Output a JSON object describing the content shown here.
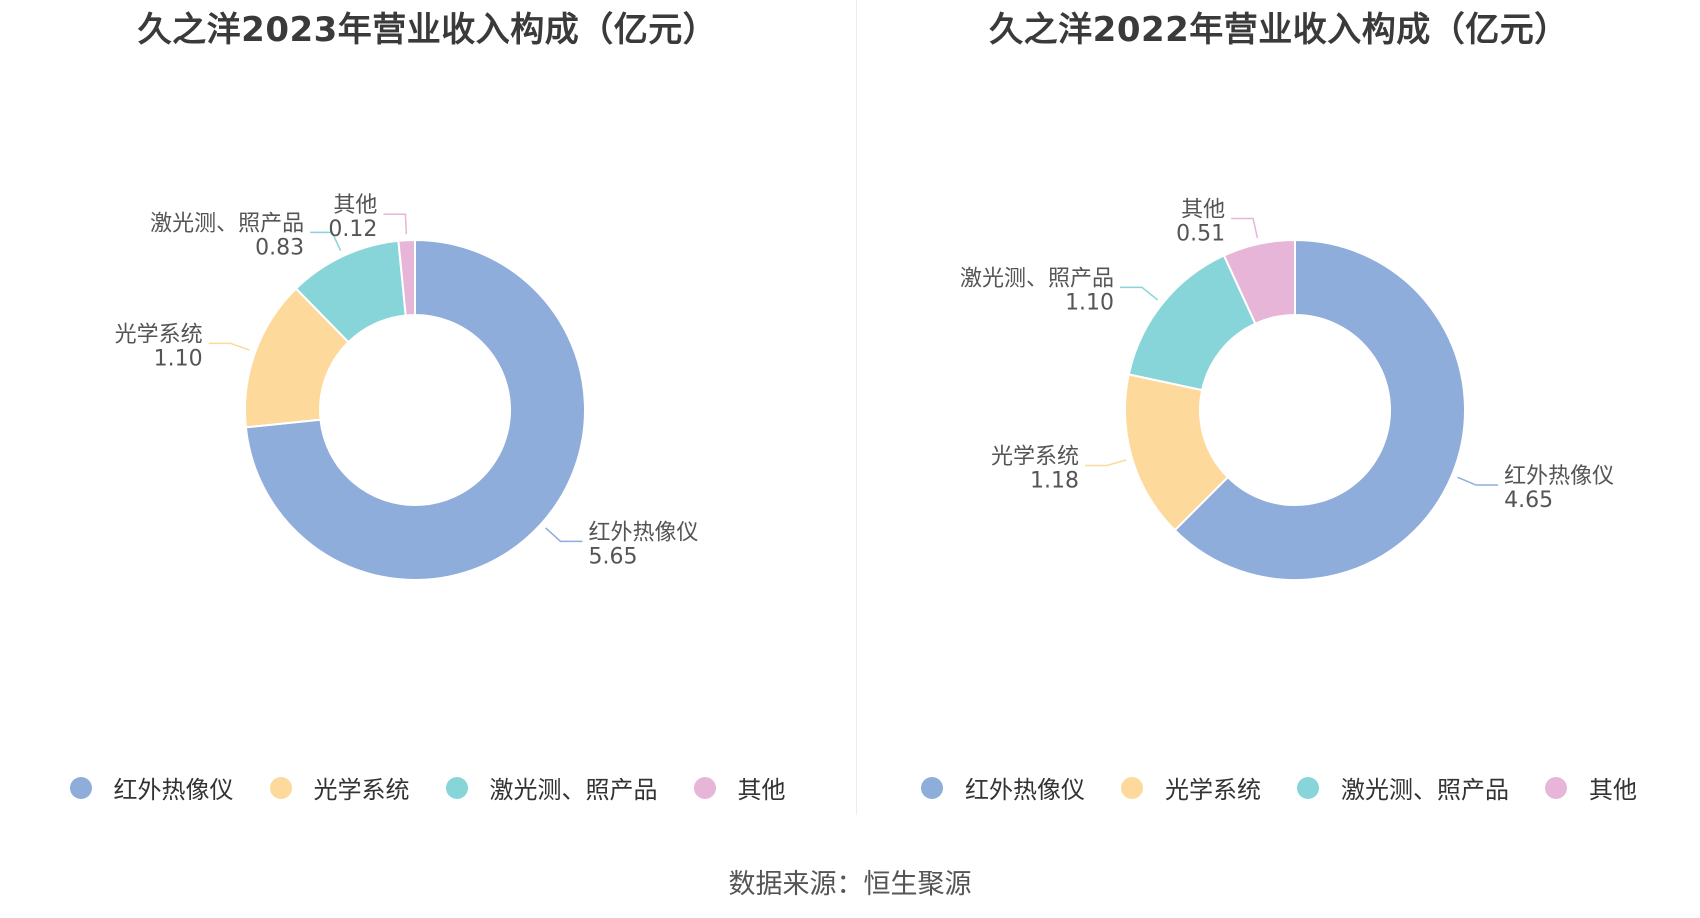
{
  "footer": {
    "source": "数据来源：恒生聚源"
  },
  "colors": {
    "红外热像仪": "#8eadda",
    "光学系统": "#fdd99b",
    "激光测、照产品": "#88d5d9",
    "其他": "#e7b5d7"
  },
  "chart_data": [
    {
      "type": "pie",
      "donut": true,
      "title": "久之洋2023年营业收入构成（亿元）",
      "unit": "亿元",
      "categories": [
        "红外热像仪",
        "光学系统",
        "激光测、照产品",
        "其他"
      ],
      "values": [
        5.65,
        1.1,
        0.83,
        0.12
      ],
      "value_labels": [
        "5.65",
        "1.10",
        "0.83",
        "0.12"
      ],
      "legend_position": "bottom"
    },
    {
      "type": "pie",
      "donut": true,
      "title": "久之洋2022年营业收入构成（亿元）",
      "unit": "亿元",
      "categories": [
        "红外热像仪",
        "光学系统",
        "激光测、照产品",
        "其他"
      ],
      "values": [
        4.65,
        1.18,
        1.1,
        0.51
      ],
      "value_labels": [
        "4.65",
        "1.18",
        "1.10",
        "0.51"
      ],
      "legend_position": "bottom"
    }
  ]
}
